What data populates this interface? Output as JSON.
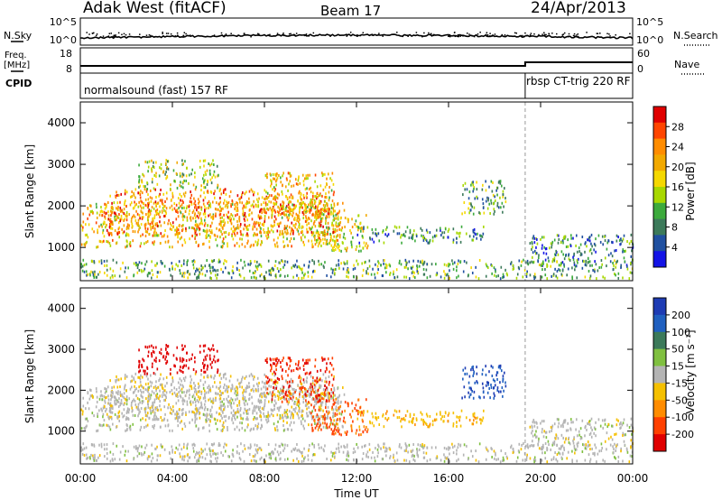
{
  "header": {
    "station": "Adak West (fitACF)",
    "beam": "Beam 17",
    "date": "24/Apr/2013"
  },
  "side_labels": {
    "nsky": "N.Sky",
    "freq_line1": "Freq.",
    "freq_line2": "[MHz]",
    "cpid": "CPID",
    "nsearch": "N.Search",
    "nave": "Nave"
  },
  "strips": {
    "noise": {
      "left_ticks": [
        "10^5",
        "10^0"
      ],
      "right_ticks": [
        "10^5",
        "10^0"
      ]
    },
    "freq": {
      "left_ticks": [
        "18",
        "8"
      ],
      "right_ticks": [
        "60",
        "0"
      ]
    }
  },
  "cpid": {
    "segments": [
      {
        "label": "normalsound (fast) 157 RF",
        "start_ut": "00:00",
        "end_ut": "19:20"
      },
      {
        "label": "rbsp CT-trig 220 RF",
        "start_ut": "19:20",
        "end_ut": "24:00"
      }
    ]
  },
  "panels": {
    "power": {
      "ylabel": "Slant Range [km]",
      "colorbar_label": "Power [dB]",
      "colorbar_ticks": [
        "28",
        "24",
        "20",
        "16",
        "12",
        "8",
        "4"
      ],
      "colorbar_colors": [
        "#e00000",
        "#ff4500",
        "#ff8c00",
        "#f2a900",
        "#f5d800",
        "#a8d800",
        "#3caa3c",
        "#3c7a5a",
        "#2050a0",
        "#1414e6"
      ]
    },
    "velocity": {
      "ylabel": "Slant Range [km]",
      "colorbar_label": "Velocity [m s⁻¹]",
      "colorbar_ticks": [
        "200",
        "100",
        "50",
        "15",
        "-15",
        "-50",
        "-100",
        "-200"
      ],
      "colorbar_colors": [
        "#1e3cb4",
        "#2060c0",
        "#3c7a5a",
        "#80c040",
        "#b4b4b4",
        "#f5c000",
        "#ff8c00",
        "#ff4000",
        "#e00000"
      ]
    }
  },
  "xaxis": {
    "label": "Time UT",
    "ticks": [
      "00:00",
      "04:00",
      "08:00",
      "12:00",
      "16:00",
      "20:00",
      "00:00"
    ]
  },
  "chart_data": {
    "type": "heatmap",
    "x_unit": "hours UT",
    "xlim": [
      0,
      24
    ],
    "y_unit": "km",
    "ylim": [
      200,
      4500
    ],
    "y_ticks": [
      1000,
      2000,
      3000,
      4000
    ],
    "power_range_db": [
      0,
      30
    ],
    "velocity_range_ms": [
      -200,
      200
    ],
    "mode_change_ut": 19.33,
    "scatter_regions": [
      {
        "t0": 0.0,
        "t1": 11.5,
        "r_lo": 1000,
        "r_hi": 2100,
        "power": 18,
        "velocity": 0
      },
      {
        "t0": 1.0,
        "t1": 11.0,
        "r_lo": 1300,
        "r_hi": 2400,
        "power": 22,
        "velocity": -10
      },
      {
        "t0": 2.5,
        "t1": 6.0,
        "r_lo": 2400,
        "r_hi": 3100,
        "power": 14,
        "velocity": -200
      },
      {
        "t0": 8.0,
        "t1": 11.0,
        "r_lo": 1700,
        "r_hi": 2800,
        "power": 18,
        "velocity": -150
      },
      {
        "t0": 10.0,
        "t1": 12.5,
        "r_lo": 900,
        "r_hi": 1800,
        "power": 16,
        "velocity": -120
      },
      {
        "t0": 12.0,
        "t1": 17.5,
        "r_lo": 1100,
        "r_hi": 1500,
        "power": 8,
        "velocity": -50
      },
      {
        "t0": 16.5,
        "t1": 18.5,
        "r_lo": 1800,
        "r_hi": 2600,
        "power": 10,
        "velocity": 150
      },
      {
        "t0": 19.5,
        "t1": 24.0,
        "r_lo": 550,
        "r_hi": 1300,
        "power": 8,
        "velocity": 0
      },
      {
        "t0": 0.0,
        "t1": 24.0,
        "r_lo": 250,
        "r_hi": 700,
        "power": 10,
        "velocity": 0
      }
    ]
  }
}
